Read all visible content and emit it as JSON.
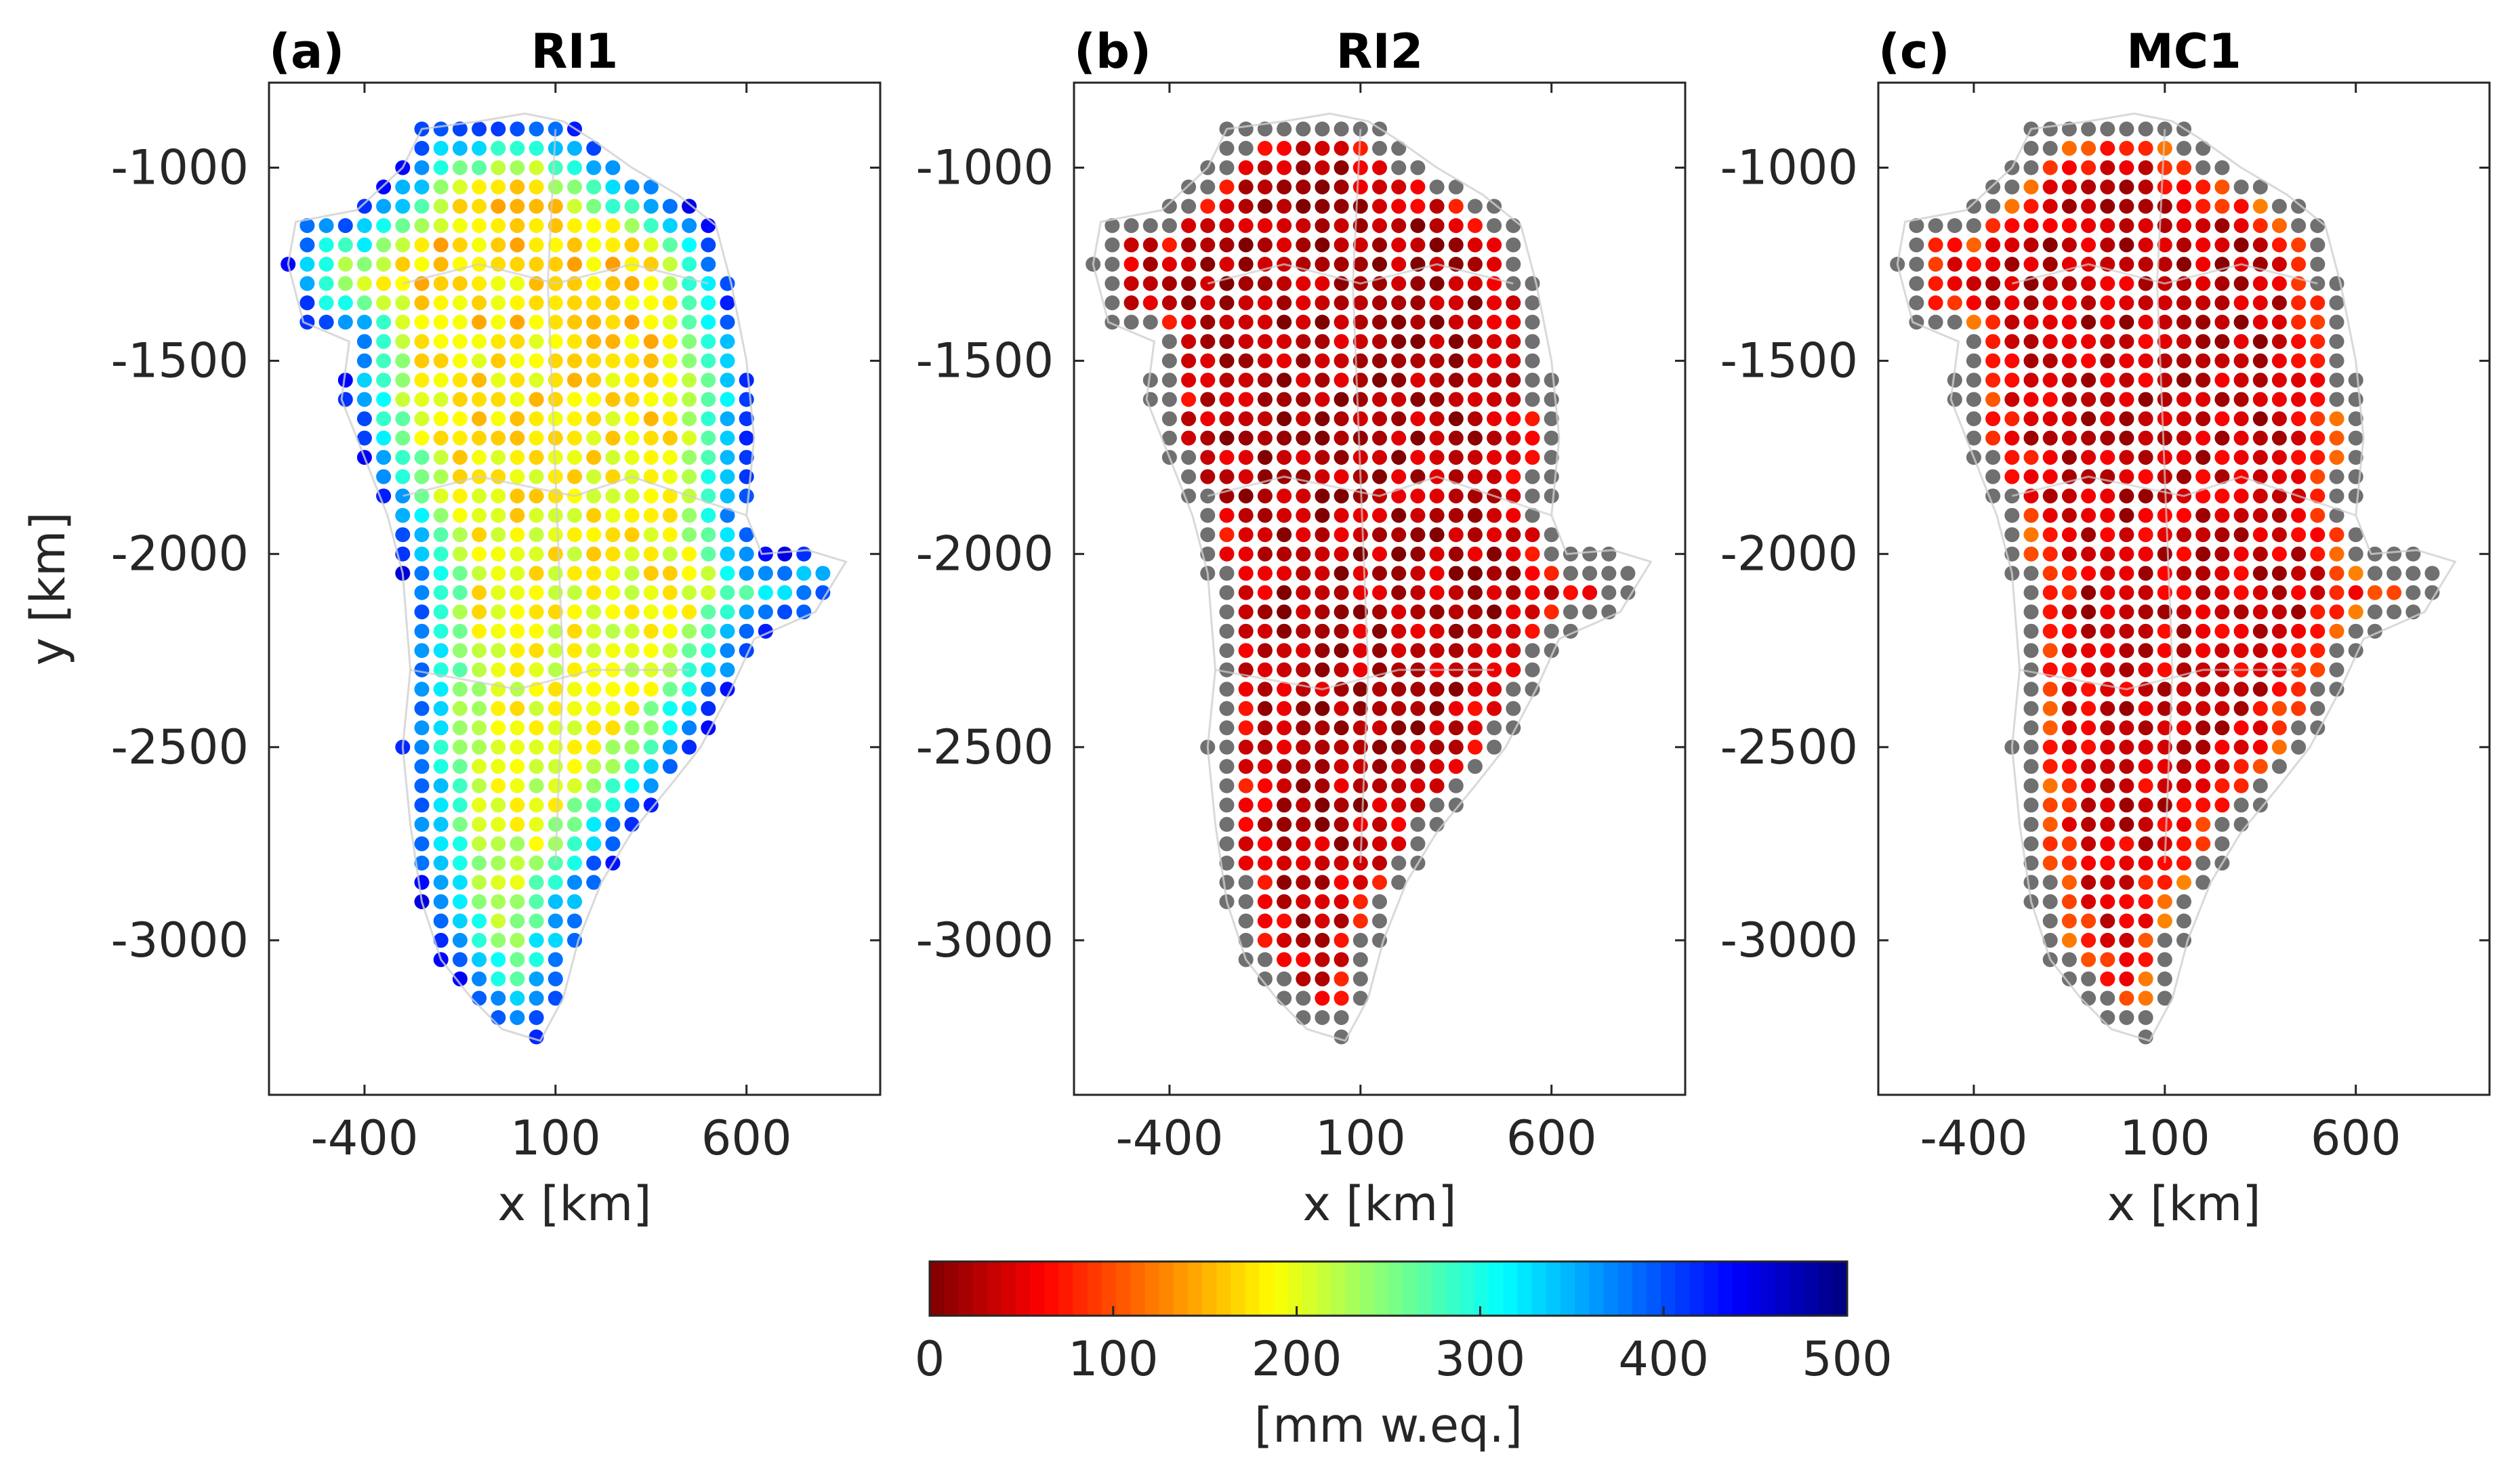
{
  "chart_data": [
    {
      "type": "scatter",
      "panel": "(a)",
      "title": "RI1",
      "xlabel": "x [km]",
      "ylabel": "y [km]",
      "xlim": [
        -650,
        950
      ],
      "ylim": [
        -3400,
        -780
      ],
      "xticks": [
        -400,
        100,
        600
      ],
      "yticks": [
        -1000,
        -1500,
        -2000,
        -2500,
        -3000
      ],
      "description_values": "gridded values in mm w.eq. mostly 100-300 interior, 350-500 along margins",
      "interior_value": 160,
      "margin_value": 430,
      "gray_border": false
    },
    {
      "type": "scatter",
      "panel": "(b)",
      "title": "RI2",
      "xlabel": "x [km]",
      "ylabel": "",
      "xlim": [
        -650,
        950
      ],
      "ylim": [
        -3400,
        -780
      ],
      "xticks": [
        -400,
        100,
        600
      ],
      "yticks": [
        -1000,
        -1500,
        -2000,
        -2500,
        -3000
      ],
      "interior_value": 20,
      "margin_value": 80,
      "gray_border": true
    },
    {
      "type": "scatter",
      "panel": "(c)",
      "title": "MC1",
      "xlabel": "x [km]",
      "ylabel": "",
      "xlim": [
        -650,
        950
      ],
      "ylim": [
        -3400,
        -780
      ],
      "xticks": [
        -400,
        100,
        600
      ],
      "yticks": [
        -1000,
        -1500,
        -2000,
        -2500,
        -3000
      ],
      "interior_value": 30,
      "margin_value": 150,
      "gray_border": true
    }
  ],
  "colorbar": {
    "colormap": "jet_reversed",
    "min": 0,
    "max": 500,
    "ticks": [
      0,
      100,
      200,
      300,
      400,
      500
    ],
    "label": "[mm w.eq.]"
  },
  "colors": {
    "gray_marker": "#707070",
    "outline": "#cfcfcf"
  }
}
